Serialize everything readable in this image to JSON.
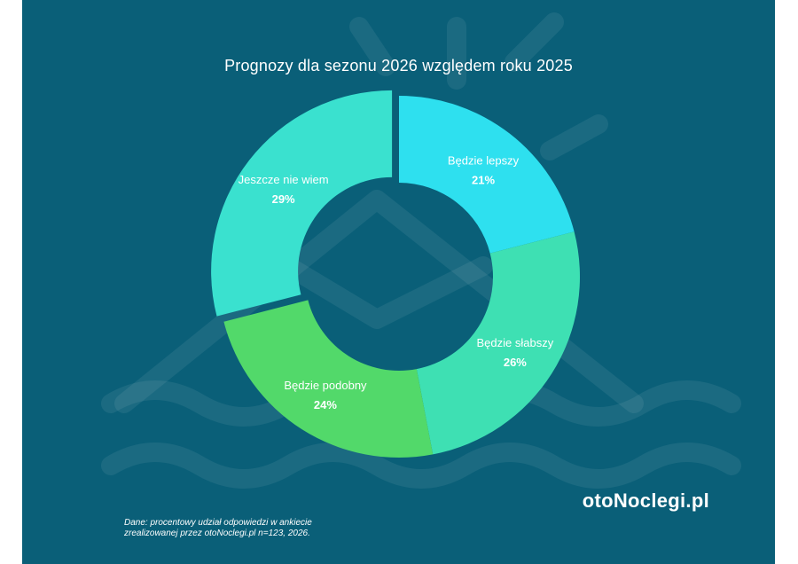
{
  "page": {
    "title": "Prognozy dla sezonu 2026 względem roku 2025",
    "brand": "otoNoclegi.pl",
    "footnote_line1": "Dane: procentowy udział odpowiedzi w ankiecie",
    "footnote_line2": "zrealizowanej przez otoNoclegi.pl n=123, 2026."
  },
  "colors": {
    "background": "#0a5f78",
    "text": "#ffffff"
  },
  "chart_data": {
    "type": "pie",
    "variant": "donut",
    "title": "Prognozy dla sezonu 2026 względem roku 2025",
    "unit": "%",
    "slices": [
      {
        "label": "Będzie lepszy",
        "value": 21,
        "display": "21%",
        "color": "#2ee0ef"
      },
      {
        "label": "Będzie słabszy",
        "value": 26,
        "display": "26%",
        "color": "#3ee0b3"
      },
      {
        "label": "Będzie podobny",
        "value": 24,
        "display": "24%",
        "color": "#52d96a"
      },
      {
        "label": "Jeszcze nie wiem",
        "value": 29,
        "display": "29%",
        "color": "#3ae1cf",
        "exploded": true
      }
    ]
  }
}
